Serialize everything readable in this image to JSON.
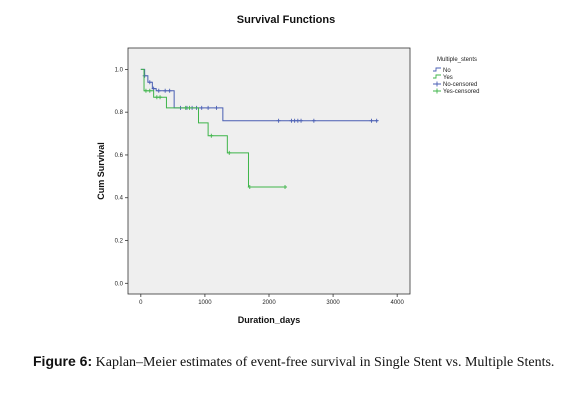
{
  "chart_data": {
    "type": "line",
    "step": true,
    "title": "Survival Functions",
    "xlabel": "Duration_days",
    "ylabel": "Cum Survival",
    "xlim": [
      -200,
      4200
    ],
    "ylim": [
      -0.05,
      1.1
    ],
    "xticks": [
      0,
      1000,
      2000,
      3000,
      4000
    ],
    "yticks": [
      0.0,
      0.2,
      0.4,
      0.6,
      0.8,
      1.0
    ],
    "xtick_labels": [
      "0",
      "1000",
      "2000",
      "3000",
      "4000"
    ],
    "ytick_labels": [
      "0.0",
      "0.2",
      "0.4",
      "0.6",
      "0.8",
      "1.0"
    ],
    "grid": false,
    "legend": {
      "title": "Multiple_stents",
      "position": "right",
      "entries": [
        {
          "label": "No",
          "kind": "step",
          "color": "#4a5fb4"
        },
        {
          "label": "Yes",
          "kind": "step",
          "color": "#3fb54a"
        },
        {
          "label": "No-censored",
          "kind": "censor",
          "color": "#4a5fb4"
        },
        {
          "label": "Yes-censored",
          "kind": "censor",
          "color": "#3fb54a"
        }
      ]
    },
    "series": [
      {
        "name": "No",
        "color": "#4a5fb4",
        "x": [
          0,
          60,
          110,
          180,
          240,
          320,
          520,
          1280,
          3700
        ],
        "y": [
          1.0,
          0.97,
          0.94,
          0.91,
          0.9,
          0.9,
          0.82,
          0.76,
          0.76
        ],
        "censored": [
          {
            "x": 60,
            "y": 0.97
          },
          {
            "x": 140,
            "y": 0.94
          },
          {
            "x": 200,
            "y": 0.91
          },
          {
            "x": 280,
            "y": 0.9
          },
          {
            "x": 380,
            "y": 0.9
          },
          {
            "x": 450,
            "y": 0.9
          },
          {
            "x": 620,
            "y": 0.82
          },
          {
            "x": 720,
            "y": 0.82
          },
          {
            "x": 800,
            "y": 0.82
          },
          {
            "x": 870,
            "y": 0.82
          },
          {
            "x": 950,
            "y": 0.82
          },
          {
            "x": 1050,
            "y": 0.82
          },
          {
            "x": 1180,
            "y": 0.82
          },
          {
            "x": 2150,
            "y": 0.76
          },
          {
            "x": 2350,
            "y": 0.76
          },
          {
            "x": 2400,
            "y": 0.76
          },
          {
            "x": 2450,
            "y": 0.76
          },
          {
            "x": 2500,
            "y": 0.76
          },
          {
            "x": 2700,
            "y": 0.76
          },
          {
            "x": 3600,
            "y": 0.76
          },
          {
            "x": 3680,
            "y": 0.76
          }
        ]
      },
      {
        "name": "Yes",
        "color": "#3fb54a",
        "x": [
          0,
          50,
          200,
          400,
          900,
          1050,
          1350,
          1680,
          2280
        ],
        "y": [
          1.0,
          0.9,
          0.87,
          0.82,
          0.75,
          0.69,
          0.61,
          0.45,
          0.45
        ],
        "censored": [
          {
            "x": 80,
            "y": 0.9
          },
          {
            "x": 140,
            "y": 0.9
          },
          {
            "x": 250,
            "y": 0.87
          },
          {
            "x": 300,
            "y": 0.87
          },
          {
            "x": 700,
            "y": 0.82
          },
          {
            "x": 760,
            "y": 0.82
          },
          {
            "x": 1100,
            "y": 0.69
          },
          {
            "x": 1380,
            "y": 0.61
          },
          {
            "x": 1700,
            "y": 0.45
          },
          {
            "x": 2250,
            "y": 0.45
          }
        ]
      }
    ]
  },
  "caption": {
    "label": "Figure 6:",
    "text": "Kaplan–Meier estimates of event-free survival in Single Stent vs. Multiple Stents."
  }
}
